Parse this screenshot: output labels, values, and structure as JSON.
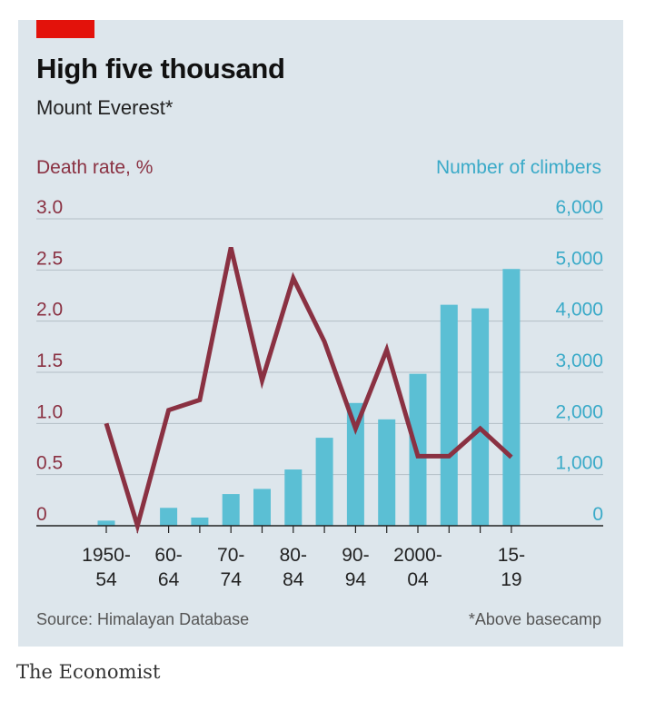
{
  "brand": "The Economist",
  "chart_data": {
    "type": "bar+line",
    "title": "High five thousand",
    "subtitle": "Mount Everest*",
    "left_axis": {
      "label": "Death rate, %",
      "ticks": [
        0,
        0.5,
        1.0,
        1.5,
        2.0,
        2.5,
        3.0
      ],
      "tick_labels": [
        "0",
        "0.5",
        "1.0",
        "1.5",
        "2.0",
        "2.5",
        "3.0"
      ],
      "range": [
        0,
        3.0
      ],
      "color": "#8a3142"
    },
    "right_axis": {
      "label": "Number of climbers",
      "ticks": [
        0,
        1000,
        2000,
        3000,
        4000,
        5000,
        6000
      ],
      "tick_labels": [
        "0",
        "1,000",
        "2,000",
        "3,000",
        "4,000",
        "5,000",
        "6,000"
      ],
      "range": [
        0,
        6000
      ],
      "color": "#3aaac8"
    },
    "x_tick_labels": [
      {
        "index": 0,
        "top": "1950-",
        "bottom": "54"
      },
      {
        "index": 2,
        "top": "60-",
        "bottom": "64"
      },
      {
        "index": 4,
        "top": "70-",
        "bottom": "74"
      },
      {
        "index": 6,
        "top": "80-",
        "bottom": "84"
      },
      {
        "index": 8,
        "top": "90-",
        "bottom": "94"
      },
      {
        "index": 10,
        "top": "2000-",
        "bottom": "04"
      },
      {
        "index": 13,
        "top": "15-",
        "bottom": "19"
      }
    ],
    "periods": [
      "1950-54",
      "1955-59",
      "1960-64",
      "1965-69",
      "1970-74",
      "1975-79",
      "1980-84",
      "1985-89",
      "1990-94",
      "1995-99",
      "2000-04",
      "2005-09",
      "2010-14",
      "2015-19"
    ],
    "series": [
      {
        "name": "Number of climbers",
        "kind": "bar",
        "axis": "right",
        "color": "#5bbfd4",
        "values": [
          100,
          0,
          350,
          160,
          620,
          720,
          1100,
          1720,
          2400,
          2080,
          2970,
          4320,
          4250,
          5020
        ]
      },
      {
        "name": "Death rate, %",
        "kind": "line",
        "axis": "left",
        "color": "#8a3142",
        "values": [
          1.0,
          0.0,
          1.13,
          1.23,
          2.72,
          1.42,
          2.42,
          1.8,
          0.95,
          1.72,
          0.68,
          0.68,
          0.95,
          0.67
        ]
      }
    ],
    "grid": true
  },
  "source": "Source: Himalayan Database",
  "footnote": "*Above basecamp"
}
